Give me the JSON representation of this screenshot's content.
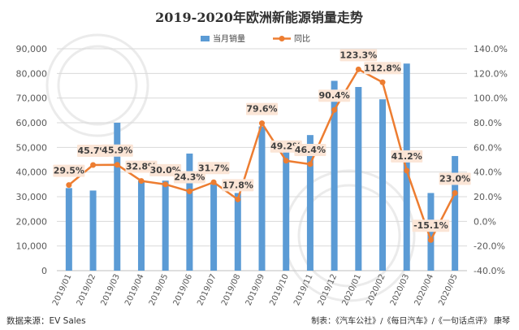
{
  "chart_data": {
    "type": "bar",
    "title": "2019-2020年欧洲新能源销量走势",
    "categories": [
      "2019/01",
      "2019/02",
      "2019/03",
      "2019/04",
      "2019/05",
      "2019/06",
      "2019/07",
      "2019/08",
      "2019/09",
      "2019/10",
      "2019/11",
      "2019/12",
      "2020/01",
      "2020/02",
      "2020/03",
      "2020/04",
      "2020/05"
    ],
    "series": [
      {
        "name": "当月销量",
        "type": "bar",
        "axis": "left",
        "color": "#5b9bd5",
        "values": [
          33500,
          32500,
          60000,
          36500,
          36500,
          47500,
          35000,
          31500,
          58500,
          48000,
          55000,
          77000,
          74500,
          69500,
          84000,
          31500,
          46500
        ]
      },
      {
        "name": "同比",
        "type": "line",
        "axis": "right",
        "color": "#ed7d31",
        "values": [
          29.5,
          45.7,
          45.9,
          32.8,
          30.0,
          24.3,
          31.7,
          17.8,
          79.6,
          49.2,
          46.4,
          90.4,
          123.3,
          112.8,
          41.2,
          -15.1,
          23.0
        ],
        "labels": [
          "29.5%",
          "45.7%",
          "45.9%",
          "32.8%",
          "30.0%",
          "24.3%",
          "31.7%",
          "17.8%",
          "79.6%",
          "49.2%",
          "46.4%",
          "90.4%",
          "123.3%",
          "112.8%",
          "41.2%",
          "-15.1%",
          "23.0%"
        ]
      }
    ],
    "y_left": {
      "range": [
        0,
        90000
      ],
      "step": 10000,
      "ticks": [
        "0",
        "10,000",
        "20,000",
        "30,000",
        "40,000",
        "50,000",
        "60,000",
        "70,000",
        "80,000",
        "90,000"
      ]
    },
    "y_right": {
      "range": [
        -40,
        140
      ],
      "step": 20,
      "ticks": [
        "-40.0%",
        "-20.0%",
        "0.0%",
        "20.0%",
        "40.0%",
        "60.0%",
        "80.0%",
        "100.0%",
        "120.0%",
        "140.0%"
      ]
    },
    "grid": true,
    "legend_position": "top-center"
  },
  "footer": {
    "source": "数据来源：EV Sales",
    "credit": "制表：《汽车公社》/《每日汽车》/《一句话点评》 康琴"
  }
}
